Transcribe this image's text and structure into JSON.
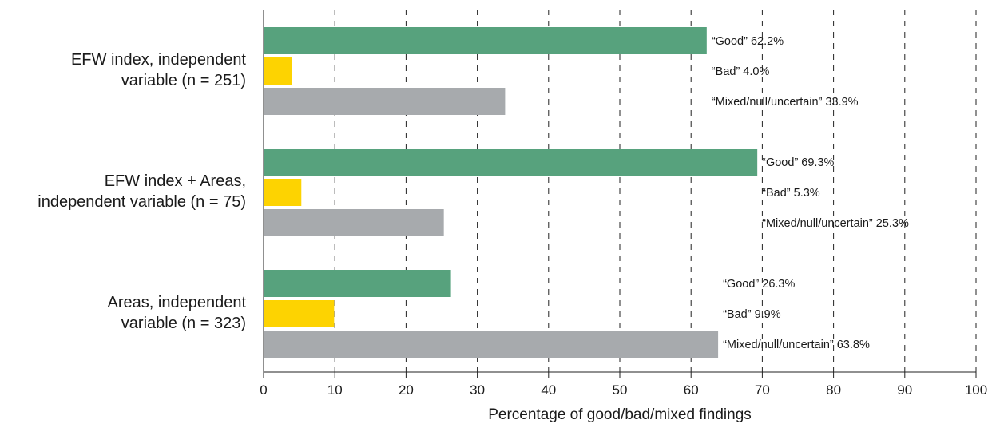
{
  "chart_data": {
    "type": "bar",
    "orientation": "horizontal",
    "xlabel": "Percentage of good/bad/mixed findings",
    "xlim": [
      0,
      100
    ],
    "xticks": [
      "0",
      "10",
      "20",
      "30",
      "40",
      "50",
      "60",
      "70",
      "80",
      "90",
      "100"
    ],
    "grid": true,
    "groups": [
      {
        "label_lines": [
          "EFW index, independent",
          "variable (n = 251)"
        ],
        "bars": [
          {
            "series": "good",
            "value": 62.2,
            "label": "“Good” 62.2%"
          },
          {
            "series": "bad",
            "value": 4.0,
            "label": "“Bad” 4.0%"
          },
          {
            "series": "mixed",
            "value": 33.9,
            "label": "“Mixed/null/uncertain” 33.9%"
          }
        ]
      },
      {
        "label_lines": [
          "EFW index + Areas,",
          "independent variable (n = 75)"
        ],
        "bars": [
          {
            "series": "good",
            "value": 69.3,
            "label": "“Good” 69.3%"
          },
          {
            "series": "bad",
            "value": 5.3,
            "label": "“Bad” 5.3%"
          },
          {
            "series": "mixed",
            "value": 25.3,
            "label": "“Mixed/null/uncertain” 25.3%"
          }
        ]
      },
      {
        "label_lines": [
          "Areas, independent",
          "variable (n = 323)"
        ],
        "bars": [
          {
            "series": "good",
            "value": 26.3,
            "label": "“Good” 26.3%"
          },
          {
            "series": "bad",
            "value": 9.9,
            "label": "“Bad” 9.9%"
          },
          {
            "series": "mixed",
            "value": 63.8,
            "label": "“Mixed/null/uncertain” 63.8%"
          }
        ]
      }
    ],
    "colors": {
      "good": "#57a27d",
      "bad": "#fdd301",
      "mixed": "#a7aaad"
    }
  }
}
